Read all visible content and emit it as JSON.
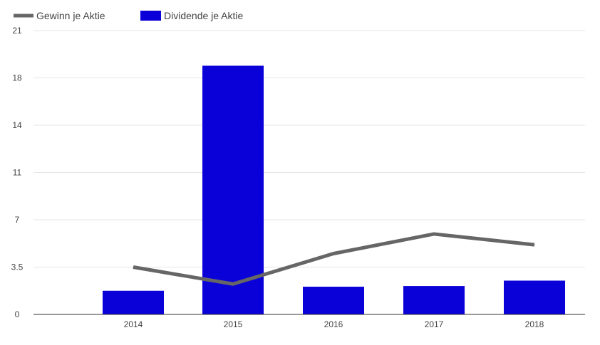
{
  "chart_data": {
    "type": "bar",
    "title": "",
    "xlabel": "",
    "ylabel": "",
    "categories": [
      "2014",
      "2015",
      "2016",
      "2017",
      "2018"
    ],
    "ylim": [
      0,
      21
    ],
    "y_ticks": [
      {
        "value": 0,
        "label": "0"
      },
      {
        "value": 3.5,
        "label": "3.5"
      },
      {
        "value": 7,
        "label": "7"
      },
      {
        "value": 10.5,
        "label": "11"
      },
      {
        "value": 14,
        "label": "14"
      },
      {
        "value": 17.5,
        "label": "18"
      },
      {
        "value": 21,
        "label": "21"
      }
    ],
    "grid": true,
    "legend_position": "top-left",
    "series": [
      {
        "name": "Gewinn je Aktie",
        "type": "line",
        "color": "#666666",
        "values": [
          3.5,
          2.25,
          4.5,
          5.95,
          5.15
        ]
      },
      {
        "name": "Dividende je Aktie",
        "type": "bar",
        "color": "#0a00d8",
        "values": [
          1.75,
          18.4,
          2.05,
          2.1,
          2.5
        ]
      }
    ]
  }
}
